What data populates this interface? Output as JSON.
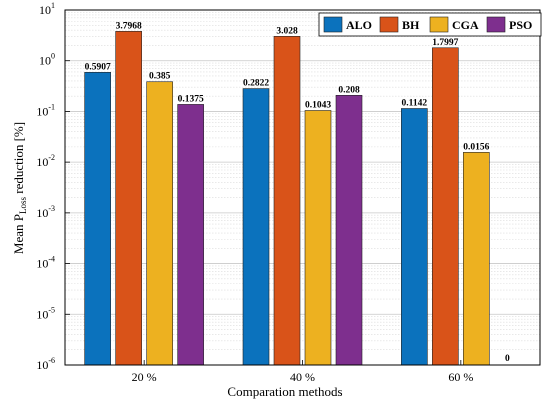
{
  "chart_data": {
    "type": "bar",
    "title": "",
    "xlabel": "Comparation methods",
    "ylabel": {
      "main": "Mean P",
      "sub": "Loss",
      "tail": " reduction [%]"
    },
    "yscale": "log",
    "ylim": [
      1e-06,
      10
    ],
    "yticks": [
      {
        "value": 1e-06,
        "base": "10",
        "exp": "-6"
      },
      {
        "value": 1e-05,
        "base": "10",
        "exp": "-5"
      },
      {
        "value": 0.0001,
        "base": "10",
        "exp": "-4"
      },
      {
        "value": 0.001,
        "base": "10",
        "exp": "-3"
      },
      {
        "value": 0.01,
        "base": "10",
        "exp": "-2"
      },
      {
        "value": 0.1,
        "base": "10",
        "exp": "-1"
      },
      {
        "value": 1,
        "base": "10",
        "exp": "0"
      },
      {
        "value": 10,
        "base": "10",
        "exp": "1"
      }
    ],
    "grid": true,
    "minor_grid": true,
    "legend_position": "top-right",
    "categories": [
      "20 %",
      "40 %",
      "60 %"
    ],
    "series": [
      {
        "name": "ALO",
        "color": "#0b72bd",
        "values": [
          0.5907,
          0.2822,
          0.1142
        ],
        "labels": [
          "0.5907",
          "0.2822",
          "0.1142"
        ]
      },
      {
        "name": "BH",
        "color": "#d95319",
        "values": [
          3.7968,
          3.028,
          1.7997
        ],
        "labels": [
          "3.7968",
          "3.028",
          "1.7997"
        ]
      },
      {
        "name": "CGA",
        "color": "#edb120",
        "values": [
          0.385,
          0.1043,
          0.0156
        ],
        "labels": [
          "0.385",
          "0.1043",
          "0.0156"
        ]
      },
      {
        "name": "PSO",
        "color": "#7e2f8e",
        "values": [
          0.1375,
          0.208,
          0
        ],
        "labels": [
          "0.1375",
          "0.208",
          "0"
        ]
      }
    ]
  }
}
